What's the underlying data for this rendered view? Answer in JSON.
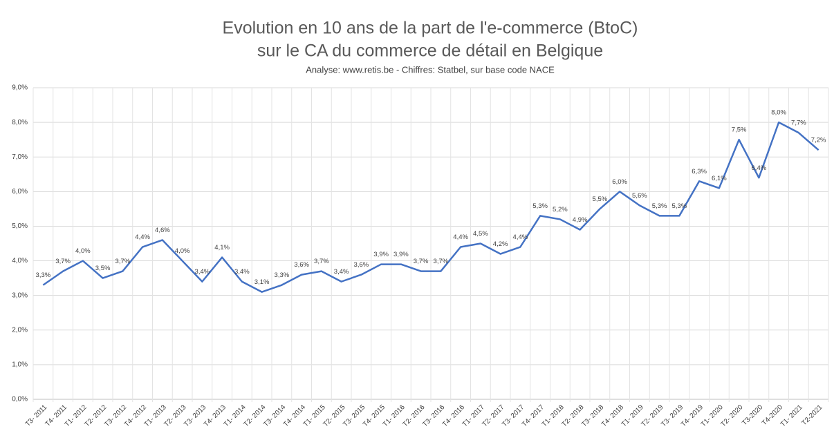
{
  "chart_data": {
    "type": "line",
    "title": [
      "Evolution en 10 ans de la part de l'e-commerce (BtoC)",
      "sur le CA du commerce de détail en Belgique"
    ],
    "subtitle": "Analyse: www.retis.be -  Chiffres: Statbel, sur base code NACE",
    "categories": [
      "T3- 2011",
      "T4- 2011",
      "T1- 2012",
      "T2- 2012",
      "T3- 2012",
      "T4- 2012",
      "T1- 2013",
      "T2- 2013",
      "T3- 2013",
      "T4- 2013",
      "T1- 2014",
      "T2- 2014",
      "T3- 2014",
      "T4- 2014",
      "T1- 2015",
      "T2- 2015",
      "T3- 2015",
      "T4- 2015",
      "T1- 2016",
      "T2- 2016",
      "T3- 2016",
      "T4- 2016",
      "T1- 2017",
      "T2- 2017",
      "T3- 2017",
      "T4- 2017",
      "T1- 2018",
      "T2- 2018",
      "T3- 2018",
      "T4- 2018",
      "T1- 2019",
      "T2- 2019",
      "T3- 2019",
      "T4- 2019",
      "T1- 2020",
      "T2- 2020",
      "T3-2020",
      "T4-2020",
      "T1- 2021",
      "T2-2021"
    ],
    "series": [
      {
        "color": "#4472c4",
        "values": [
          3.3,
          3.7,
          4.0,
          3.5,
          3.7,
          4.4,
          4.6,
          4.0,
          3.4,
          4.1,
          3.4,
          3.1,
          3.3,
          3.6,
          3.7,
          3.4,
          3.6,
          3.9,
          3.9,
          3.7,
          3.7,
          4.4,
          4.5,
          4.2,
          4.4,
          5.3,
          5.2,
          4.9,
          5.5,
          6.0,
          5.6,
          5.3,
          5.3,
          6.3,
          6.1,
          7.5,
          6.4,
          8.0,
          7.7,
          7.2
        ],
        "value_labels": [
          "3,3%",
          "3,7%",
          "4,0%",
          "3,5%",
          "3,7%",
          "4,4%",
          "4,6%",
          "4,0%",
          "3,4%",
          "4,1%",
          "3,4%",
          "3,1%",
          "3,3%",
          "3,6%",
          "3,7%",
          "3,4%",
          "3,6%",
          "3,9%",
          "3,9%",
          "3,7%",
          "3,7%",
          "4,4%",
          "4,5%",
          "4,2%",
          "4,4%",
          "5,3%",
          "5,2%",
          "4,9%",
          "5,5%",
          "6,0%",
          "5,6%",
          "5,3%",
          "5,3%",
          "6,3%",
          "6,1%",
          "7,5%",
          "6,4%",
          "8,0%",
          "7,7%",
          "7,2%"
        ]
      }
    ],
    "ylim": [
      0,
      9
    ],
    "yticks": [
      {
        "value": 0,
        "label": "0,0%"
      },
      {
        "value": 1,
        "label": "1,0%"
      },
      {
        "value": 2,
        "label": "2,0%"
      },
      {
        "value": 3,
        "label": "3,0%"
      },
      {
        "value": 4,
        "label": "4,0%"
      },
      {
        "value": 5,
        "label": "5,0%"
      },
      {
        "value": 6,
        "label": "6,0%"
      },
      {
        "value": 7,
        "label": "7,0%"
      },
      {
        "value": 8,
        "label": "8,0%"
      },
      {
        "value": 9,
        "label": "9,0%"
      }
    ],
    "grid": true
  }
}
